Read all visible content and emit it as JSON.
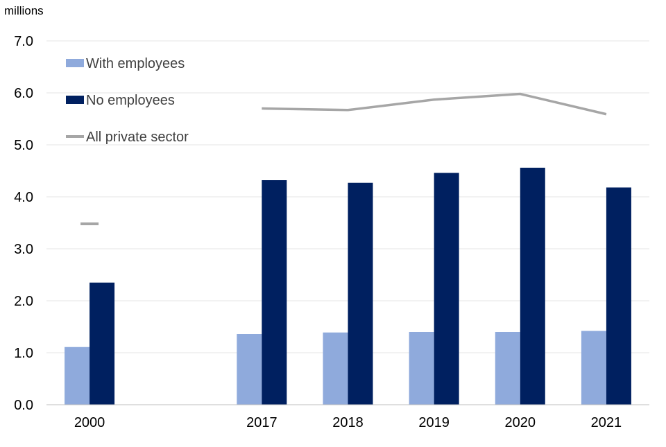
{
  "chart_data": {
    "type": "bar",
    "unit_label": "millions",
    "categories": [
      "2000",
      "",
      "2017",
      "2018",
      "2019",
      "2020",
      "2021"
    ],
    "series": [
      {
        "name": "With employees",
        "kind": "bar",
        "color": "#8FAADC",
        "values": [
          1.11,
          null,
          1.36,
          1.39,
          1.4,
          1.4,
          1.42
        ]
      },
      {
        "name": "No employees",
        "kind": "bar",
        "color": "#002060",
        "values": [
          2.35,
          null,
          4.32,
          4.27,
          4.46,
          4.56,
          4.18
        ]
      },
      {
        "name": "All private sector",
        "kind": "line",
        "color": "#A6A6A6",
        "values": [
          3.48,
          null,
          5.7,
          5.67,
          5.87,
          5.98,
          5.59
        ]
      }
    ],
    "ylim": [
      0,
      7
    ],
    "yticks": [
      "0.0",
      "1.0",
      "2.0",
      "3.0",
      "4.0",
      "5.0",
      "6.0",
      "7.0"
    ],
    "grid": true,
    "legend_position": "top-left"
  }
}
